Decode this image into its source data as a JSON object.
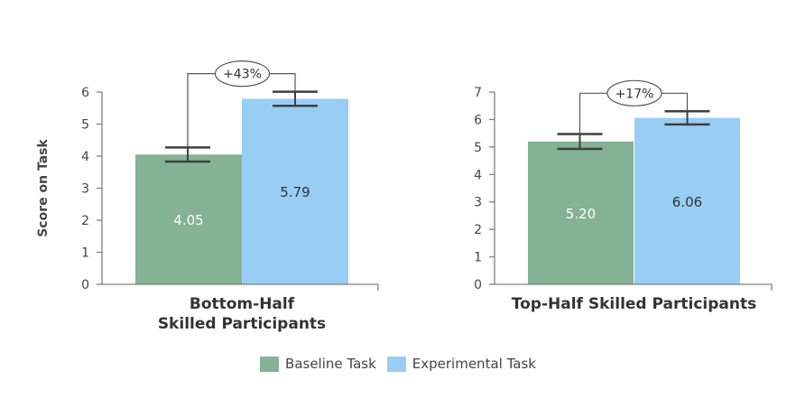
{
  "chart_data": [
    {
      "type": "bar",
      "title": "Bottom-Half\nSkilled Participants",
      "ylabel": "Score on Task",
      "ylim": [
        0,
        6
      ],
      "yticks": [
        0,
        1,
        2,
        3,
        4,
        5,
        6
      ],
      "series": [
        {
          "name": "Baseline Task",
          "value": 4.05,
          "label": "4.05",
          "error": 0.22,
          "color": "#84b295"
        },
        {
          "name": "Experimental Task",
          "value": 5.79,
          "label": "5.79",
          "error": 0.22,
          "color": "#98cef4"
        }
      ],
      "annotation": "+43%"
    },
    {
      "type": "bar",
      "title": "Top-Half Skilled Participants",
      "ylabel": "",
      "ylim": [
        0,
        7
      ],
      "yticks": [
        0,
        1,
        2,
        3,
        4,
        5,
        6,
        7
      ],
      "series": [
        {
          "name": "Baseline Task",
          "value": 5.2,
          "label": "5.20",
          "error": 0.27,
          "color": "#84b295"
        },
        {
          "name": "Experimental Task",
          "value": 6.06,
          "label": "6.06",
          "error": 0.24,
          "color": "#98cef4"
        }
      ],
      "annotation": "+17%"
    }
  ],
  "legend": [
    {
      "label": "Baseline Task",
      "color": "#84b295"
    },
    {
      "label": "Experimental Task",
      "color": "#98cef4"
    }
  ]
}
